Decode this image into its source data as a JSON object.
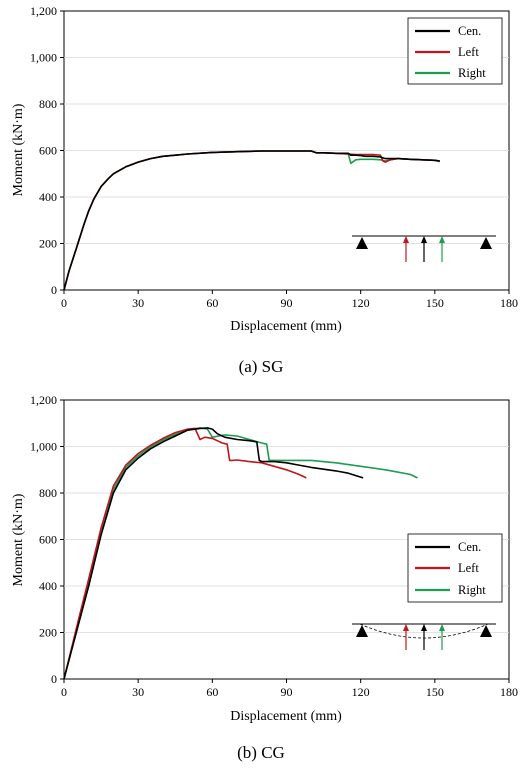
{
  "colors": {
    "cen": "#000000",
    "left": "#c0161c",
    "right": "#1e9c50"
  },
  "chart_data": [
    {
      "type": "line",
      "caption": "(a) SG",
      "xlabel": "Displacement (mm)",
      "ylabel": "Moment (kN·m)",
      "xlim": [
        0,
        180
      ],
      "ylim": [
        0,
        1200
      ],
      "xticks": [
        "0",
        "30",
        "60",
        "90",
        "120",
        "150",
        "180"
      ],
      "yticks": [
        "0",
        "200",
        "400",
        "600",
        "800",
        "1,000",
        "1,200"
      ],
      "legend_position": "top-right",
      "series": [
        {
          "name": "Cen.",
          "color": "#000000",
          "x": [
            0,
            2,
            5,
            8,
            10,
            12,
            15,
            18,
            20,
            25,
            30,
            35,
            40,
            45,
            50,
            60,
            70,
            80,
            90,
            100,
            102,
            105,
            110,
            115,
            116,
            118,
            120,
            122,
            125,
            128,
            130,
            135,
            140,
            145,
            150,
            152
          ],
          "y": [
            0,
            80,
            180,
            280,
            340,
            390,
            445,
            480,
            500,
            530,
            550,
            565,
            575,
            580,
            585,
            592,
            595,
            598,
            598,
            598,
            590,
            590,
            588,
            588,
            580,
            580,
            578,
            575,
            575,
            572,
            565,
            565,
            562,
            560,
            558,
            555
          ]
        },
        {
          "name": "Left",
          "color": "#c0161c",
          "x": [
            0,
            2,
            5,
            8,
            10,
            12,
            15,
            18,
            20,
            25,
            30,
            35,
            40,
            45,
            50,
            60,
            70,
            80,
            90,
            100,
            102,
            105,
            110,
            115,
            118,
            120,
            125,
            128,
            129,
            130,
            132,
            135,
            140,
            145,
            150,
            152
          ],
          "y": [
            0,
            80,
            180,
            280,
            340,
            390,
            445,
            480,
            500,
            530,
            550,
            565,
            575,
            580,
            585,
            592,
            595,
            598,
            598,
            598,
            590,
            590,
            588,
            585,
            583,
            583,
            583,
            580,
            555,
            550,
            560,
            565,
            562,
            560,
            558,
            555
          ]
        },
        {
          "name": "Right",
          "color": "#1e9c50",
          "x": [
            0,
            2,
            5,
            8,
            10,
            12,
            15,
            18,
            20,
            25,
            30,
            35,
            40,
            45,
            50,
            60,
            70,
            80,
            90,
            100,
            102,
            105,
            110,
            115,
            116,
            118,
            120,
            125,
            128,
            130,
            132,
            135,
            140,
            145,
            150,
            152
          ],
          "y": [
            0,
            80,
            180,
            280,
            340,
            390,
            445,
            480,
            500,
            530,
            550,
            565,
            575,
            580,
            585,
            592,
            595,
            598,
            598,
            598,
            590,
            590,
            588,
            585,
            545,
            560,
            562,
            562,
            560,
            555,
            560,
            565,
            562,
            560,
            558,
            552
          ]
        }
      ]
    },
    {
      "type": "line",
      "caption": "(b) CG",
      "xlabel": "Displacement (mm)",
      "ylabel": "Moment (kN·m)",
      "xlim": [
        0,
        180
      ],
      "ylim": [
        0,
        1200
      ],
      "xticks": [
        "0",
        "30",
        "60",
        "90",
        "120",
        "150",
        "180"
      ],
      "yticks": [
        "0",
        "200",
        "400",
        "600",
        "800",
        "1,000",
        "1,200"
      ],
      "legend_position": "center-right",
      "series": [
        {
          "name": "Cen.",
          "color": "#000000",
          "x": [
            0,
            3,
            6,
            10,
            15,
            20,
            25,
            30,
            35,
            40,
            45,
            50,
            55,
            58,
            60,
            62,
            65,
            70,
            75,
            78,
            79,
            80,
            85,
            90,
            95,
            100,
            110,
            115,
            121
          ],
          "y": [
            0,
            120,
            240,
            400,
            620,
            800,
            900,
            950,
            990,
            1020,
            1045,
            1070,
            1078,
            1080,
            1075,
            1055,
            1040,
            1030,
            1025,
            1020,
            940,
            935,
            935,
            930,
            920,
            910,
            895,
            885,
            865
          ]
        },
        {
          "name": "Left",
          "color": "#c0161c",
          "x": [
            0,
            3,
            6,
            10,
            15,
            20,
            25,
            30,
            35,
            40,
            45,
            50,
            53,
            55,
            57,
            60,
            62,
            64,
            66,
            67,
            68,
            70,
            75,
            80,
            85,
            90,
            95,
            98
          ],
          "y": [
            0,
            130,
            260,
            430,
            650,
            830,
            920,
            970,
            1005,
            1035,
            1060,
            1075,
            1078,
            1030,
            1040,
            1035,
            1025,
            1015,
            1010,
            940,
            940,
            942,
            935,
            930,
            915,
            900,
            880,
            865
          ]
        },
        {
          "name": "Right",
          "color": "#1e9c50",
          "x": [
            0,
            3,
            6,
            10,
            15,
            20,
            25,
            30,
            35,
            40,
            45,
            50,
            55,
            58,
            60,
            65,
            70,
            75,
            80,
            82,
            83,
            85,
            90,
            100,
            110,
            120,
            130,
            140,
            143
          ],
          "y": [
            0,
            125,
            250,
            420,
            640,
            815,
            910,
            960,
            998,
            1028,
            1052,
            1072,
            1080,
            1075,
            1040,
            1050,
            1045,
            1030,
            1015,
            1010,
            940,
            940,
            940,
            940,
            930,
            915,
            900,
            880,
            865
          ]
        }
      ]
    }
  ]
}
